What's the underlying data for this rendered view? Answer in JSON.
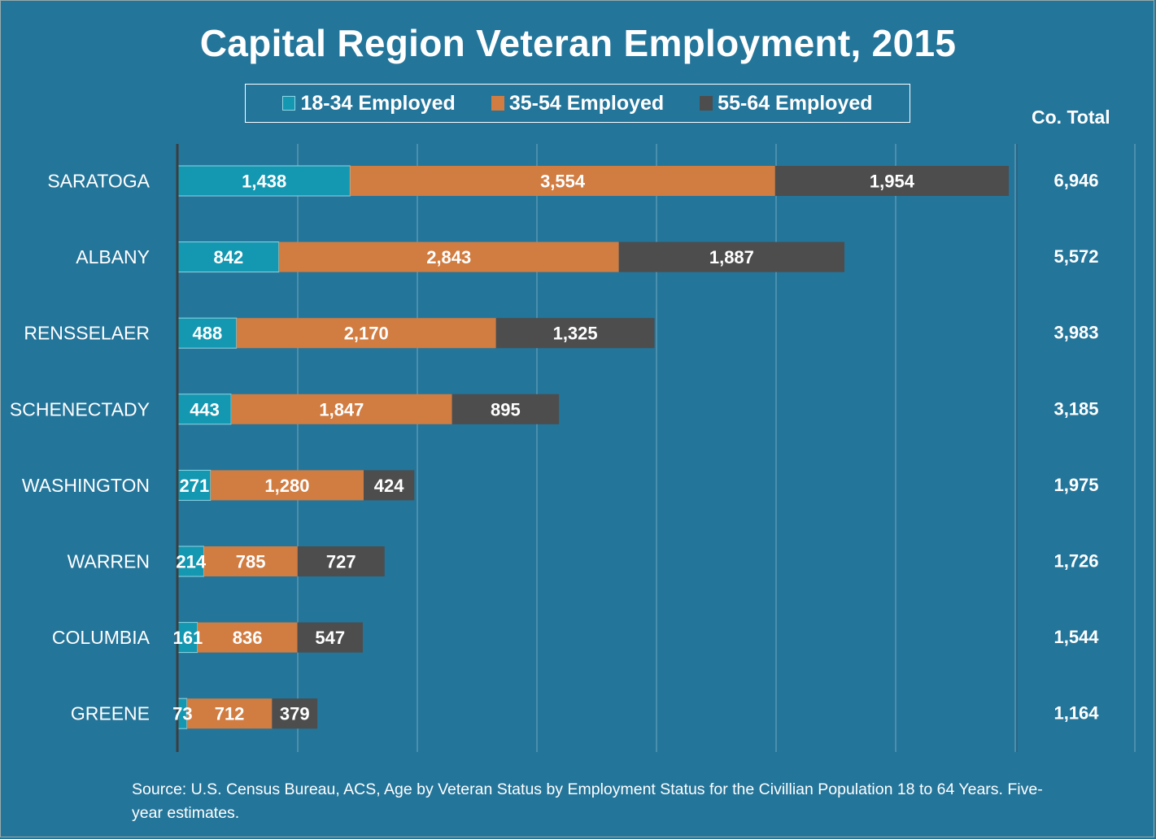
{
  "chart_data": {
    "type": "bar",
    "orientation": "horizontal",
    "stacked": true,
    "title": "Capital Region Veteran Employment, 2015",
    "xlabel": "",
    "ylabel": "",
    "xlim": [
      0,
      8000
    ],
    "x_gridline_step": 1000,
    "grid": true,
    "legend_position": "top",
    "categories": [
      "SARATOGA",
      "ALBANY",
      "RENSSELAER",
      "SCHENECTADY",
      "WASHINGTON",
      "WARREN",
      "COLUMBIA",
      "GREENE"
    ],
    "series": [
      {
        "name": "18-34 Employed",
        "color": "#1497b1",
        "values": [
          1438,
          842,
          488,
          443,
          271,
          214,
          161,
          73
        ]
      },
      {
        "name": "35-54 Employed",
        "color": "#d17c41",
        "values": [
          3554,
          2843,
          2170,
          1847,
          1280,
          785,
          836,
          712
        ]
      },
      {
        "name": "55-64 Employed",
        "color": "#4d4d4d",
        "values": [
          1954,
          1887,
          1325,
          895,
          424,
          727,
          547,
          379
        ]
      }
    ],
    "totals_header": "Co. Total",
    "totals": [
      6946,
      5572,
      3983,
      3185,
      1975,
      1726,
      1544,
      1164
    ],
    "totals_labels": [
      "6,946",
      "5,572",
      "3,983",
      "3,185",
      "1,975",
      "1,726",
      "1,544",
      "1,164"
    ],
    "data_labels": [
      [
        "1,438",
        "842",
        "488",
        "443",
        "271",
        "214",
        "161",
        "73"
      ],
      [
        "3,554",
        "2,843",
        "2,170",
        "1,847",
        "1,280",
        "785",
        "836",
        "712"
      ],
      [
        "1,954",
        "1,887",
        "1,325",
        "895",
        "424",
        "727",
        "547",
        "379"
      ]
    ],
    "source": "Source: U.S. Census Bureau, ACS, Age  by Veteran Status by Employment Status for the Civillian Population  18 to 64 Years. Five-year estimates."
  },
  "colors": {
    "background": "#24759a",
    "gridline": "#4a8fae",
    "axis": "#3d3d3d",
    "text": "#ffffff"
  }
}
